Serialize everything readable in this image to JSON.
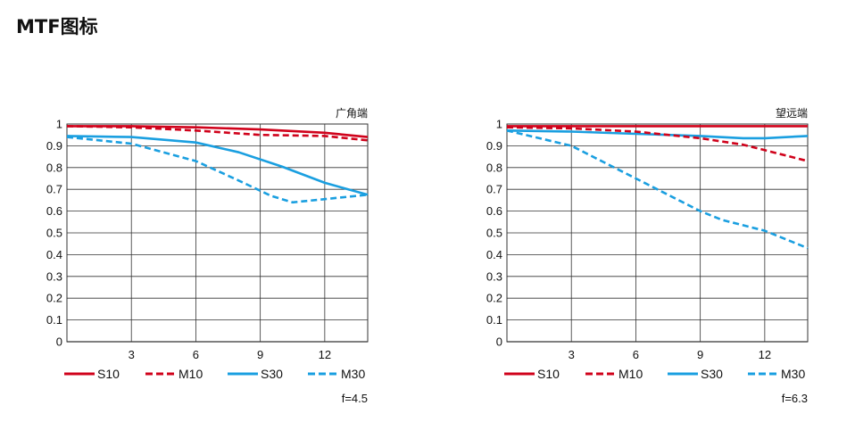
{
  "page": {
    "title": "MTF图标"
  },
  "colors": {
    "S10": "#d0021b",
    "M10": "#d0021b",
    "S30": "#1a9fe0",
    "M30": "#1a9fe0",
    "grid": "#333333"
  },
  "chart_data": [
    {
      "type": "line",
      "corner_label": "广角端",
      "aperture": "f=4.5",
      "xlim": [
        0,
        14
      ],
      "ylim": [
        0,
        1
      ],
      "xticks": [
        3,
        6,
        9,
        12
      ],
      "xtick_labels": [
        "3",
        "6",
        "9",
        "12"
      ],
      "yticks": [
        0,
        0.1,
        0.2,
        0.3,
        0.4,
        0.5,
        0.6,
        0.7,
        0.8,
        0.9,
        1
      ],
      "ytick_labels": [
        "0",
        "0.1",
        "0.2",
        "0.3",
        "0.4",
        "0.5",
        "0.6",
        "0.7",
        "0.8",
        "0.9",
        "1"
      ],
      "grid": true,
      "legend_position": "bottom",
      "series": [
        {
          "name": "S10",
          "style": "solid",
          "x": [
            0,
            3,
            6,
            9,
            12,
            14
          ],
          "y": [
            0.99,
            0.99,
            0.985,
            0.975,
            0.96,
            0.94
          ]
        },
        {
          "name": "M10",
          "style": "dashed",
          "x": [
            0,
            3,
            6,
            9,
            12,
            14
          ],
          "y": [
            0.99,
            0.985,
            0.97,
            0.95,
            0.945,
            0.925
          ]
        },
        {
          "name": "S30",
          "style": "solid",
          "x": [
            0,
            3,
            6,
            8,
            10,
            12,
            14
          ],
          "y": [
            0.945,
            0.94,
            0.915,
            0.87,
            0.805,
            0.73,
            0.675
          ]
        },
        {
          "name": "M30",
          "style": "dashed",
          "x": [
            0,
            3,
            6,
            8,
            9.5,
            10.5,
            12,
            14
          ],
          "y": [
            0.94,
            0.91,
            0.83,
            0.74,
            0.67,
            0.64,
            0.655,
            0.675
          ]
        }
      ]
    },
    {
      "type": "line",
      "corner_label": "望远端",
      "aperture": "f=6.3",
      "xlim": [
        0,
        14
      ],
      "ylim": [
        0,
        1
      ],
      "xticks": [
        3,
        6,
        9,
        12
      ],
      "xtick_labels": [
        "3",
        "6",
        "9",
        "12"
      ],
      "yticks": [
        0,
        0.1,
        0.2,
        0.3,
        0.4,
        0.5,
        0.6,
        0.7,
        0.8,
        0.9,
        1
      ],
      "ytick_labels": [
        "0",
        "0.1",
        "0.2",
        "0.3",
        "0.4",
        "0.5",
        "0.6",
        "0.7",
        "0.8",
        "0.9",
        "1"
      ],
      "grid": true,
      "legend_position": "bottom",
      "series": [
        {
          "name": "S10",
          "style": "solid",
          "x": [
            0,
            3,
            6,
            9,
            12,
            14
          ],
          "y": [
            0.99,
            0.99,
            0.99,
            0.99,
            0.99,
            0.99
          ]
        },
        {
          "name": "M10",
          "style": "dashed",
          "x": [
            0,
            3,
            6,
            9,
            11,
            12,
            14
          ],
          "y": [
            0.985,
            0.98,
            0.965,
            0.935,
            0.905,
            0.88,
            0.83
          ]
        },
        {
          "name": "S30",
          "style": "solid",
          "x": [
            0,
            3,
            6,
            9,
            11,
            12,
            14
          ],
          "y": [
            0.97,
            0.965,
            0.955,
            0.945,
            0.935,
            0.935,
            0.945
          ]
        },
        {
          "name": "M30",
          "style": "dashed",
          "x": [
            0,
            3,
            6,
            9,
            10,
            12,
            14
          ],
          "y": [
            0.97,
            0.9,
            0.75,
            0.6,
            0.56,
            0.51,
            0.43
          ]
        }
      ]
    }
  ]
}
